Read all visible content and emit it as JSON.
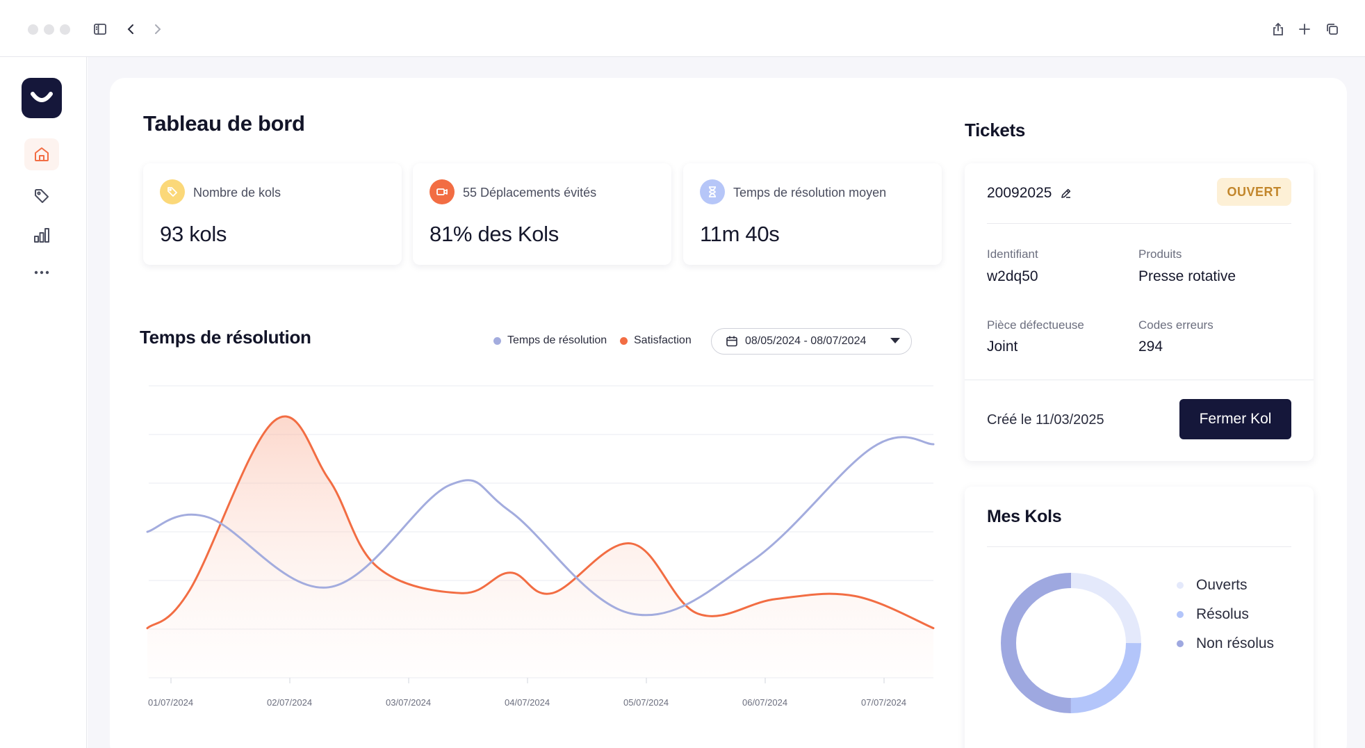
{
  "browser": {
    "icons": [
      "sidebar-toggle-icon",
      "back-icon",
      "forward-icon",
      "share-icon",
      "new-tab-icon",
      "tabs-icon"
    ]
  },
  "sidebar": {
    "items": [
      {
        "name": "home",
        "icon": "home-icon",
        "active": true
      },
      {
        "name": "tags",
        "icon": "tag-icon",
        "active": false
      },
      {
        "name": "stats",
        "icon": "bar-chart-icon",
        "active": false
      },
      {
        "name": "more",
        "icon": "more-icon",
        "active": false
      }
    ]
  },
  "dashboard": {
    "title": "Tableau de bord",
    "stats": [
      {
        "label": "Nombre de kols",
        "value": "93 kols",
        "icon": "tag-icon",
        "color": "#f7c85b"
      },
      {
        "label": "55 Déplacements évités",
        "value": "81% des Kols",
        "icon": "video-icon",
        "color": "#f26d43"
      },
      {
        "label": "Temps de résolution moyen",
        "value": "11m 40s",
        "icon": "hourglass-icon",
        "color": "#aabcf5"
      }
    ]
  },
  "resolution": {
    "title": "Temps de résolution",
    "legend": [
      {
        "label": "Temps de résolution",
        "color": "#a3acde"
      },
      {
        "label": "Satisfaction",
        "color": "#f26d43"
      }
    ],
    "date_range": "08/05/2024 - 08/07/2024"
  },
  "chart_data": {
    "type": "line",
    "title": "Temps de résolution",
    "x": [
      "01/07/2024",
      "02/07/2024",
      "03/07/2024",
      "04/07/2024",
      "05/07/2024",
      "06/07/2024",
      "07/07/2024"
    ],
    "ylim": [
      0,
      100
    ],
    "grid": true,
    "series": [
      {
        "name": "Temps de résolution",
        "color": "#a3acde",
        "fill": false,
        "points": [
          [
            0,
            50
          ],
          [
            0.5,
            55
          ],
          [
            1.5,
            31
          ],
          [
            2.5,
            66
          ],
          [
            3.0,
            57
          ],
          [
            4.0,
            22
          ],
          [
            5.0,
            40
          ],
          [
            6.0,
            79
          ],
          [
            6.5,
            80
          ]
        ]
      },
      {
        "name": "Satisfaction",
        "color": "#f26d43",
        "fill": true,
        "points": [
          [
            0,
            17
          ],
          [
            0.35,
            30
          ],
          [
            1.05,
            88
          ],
          [
            1.5,
            68
          ],
          [
            1.9,
            38
          ],
          [
            2.6,
            29
          ],
          [
            3.0,
            36
          ],
          [
            3.35,
            29
          ],
          [
            4.0,
            46
          ],
          [
            4.55,
            22
          ],
          [
            5.2,
            27
          ],
          [
            5.85,
            28
          ],
          [
            6.5,
            17
          ]
        ]
      }
    ]
  },
  "tickets": {
    "title": "Tickets",
    "id": "20092025",
    "status": "OUVERT",
    "fields": [
      {
        "label": "Identifiant",
        "value": "w2dq50"
      },
      {
        "label": "Produits",
        "value": "Presse rotative"
      },
      {
        "label": "Pièce défectueuse",
        "value": "Joint"
      },
      {
        "label": "Codes erreurs",
        "value": "294"
      }
    ],
    "created": "Créé le 11/03/2025",
    "close_button": "Fermer Kol"
  },
  "kols": {
    "title": "Mes Kols",
    "legend": [
      {
        "label": "Ouverts",
        "color": "#dfe5fb"
      },
      {
        "label": "Résolus",
        "color": "#b3c5fa"
      },
      {
        "label": "Non résolus",
        "color": "#9ea8e0"
      }
    ],
    "donut": [
      {
        "name": "Ouverts",
        "value": 25,
        "color": "#e4e9fb"
      },
      {
        "name": "Résolus",
        "value": 25,
        "color": "#b3c5fa"
      },
      {
        "name": "Non résolus",
        "value": 50,
        "color": "#9ea8e0"
      }
    ]
  }
}
